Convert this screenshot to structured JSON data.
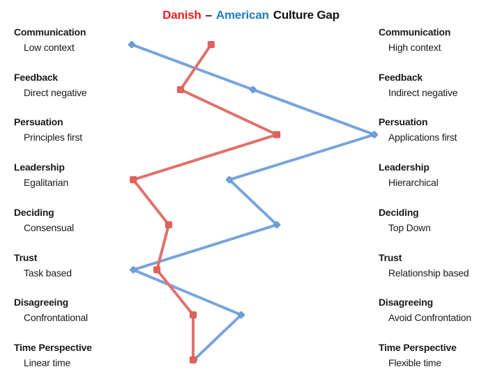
{
  "title": {
    "danish": "Danish",
    "separator": "–",
    "american": "American",
    "rest": "Culture Gap"
  },
  "colors": {
    "title_red": "#E8201E",
    "title_blue": "#1F7CC7",
    "title_dark": "#111111",
    "danish_line": "#E0716B",
    "danish_marker": "#E4625C",
    "danish_marker_stroke": "#D95550",
    "american_line": "#78A4DC",
    "american_marker": "#6FA0DA",
    "american_marker_stroke": "#5E92D3",
    "label_text": "#1A1A1A"
  },
  "chart_data": {
    "type": "line",
    "title": "Danish – American Culture Gap",
    "orientation": "vertical category rows, horizontal value scale (left extreme = 0, right extreme = 100)",
    "grid": false,
    "legend": "encoded in title colors (Danish = red, American = blue)",
    "xlim": [
      0,
      100
    ],
    "categories": [
      "Communication",
      "Feedback",
      "Persuation",
      "Leadership",
      "Deciding",
      "Trust",
      "Disagreeing",
      "Time Perspective"
    ],
    "left_labels": [
      "Low context",
      "Direct negative",
      "Principles first",
      "Egalitarian",
      "Consensual",
      "Task based",
      "Confrontational",
      "Linear time"
    ],
    "right_labels": [
      "High context",
      "Indirect negative",
      "Applications first",
      "Hierarchical",
      "Top Down",
      "Relationship based",
      "Avoid Confrontation",
      "Flexible time"
    ],
    "series": [
      {
        "name": "American",
        "marker": "diamond",
        "line_color": "#78A4DC",
        "marker_color": "#6FA0DA",
        "marker_stroke": "#5E92D3",
        "values": [
          4.9,
          50.1,
          95.3,
          41.3,
          59.0,
          5.5,
          45.7,
          28.1
        ]
      },
      {
        "name": "Danish",
        "marker": "square",
        "line_color": "#E0716B",
        "marker_color": "#E4625C",
        "marker_stroke": "#D95550",
        "values": [
          34.5,
          23.1,
          59.0,
          5.5,
          18.7,
          14.3,
          27.8,
          27.8
        ]
      }
    ]
  }
}
